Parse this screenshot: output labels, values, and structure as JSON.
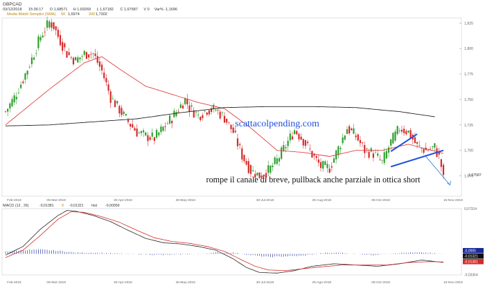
{
  "header": {
    "symbol": "GBPCAD",
    "values": [
      "03/12/2018",
      "15:36:17",
      "O 1,68571",
      "H 1,69269",
      "L 1,67182",
      "C 1,67587",
      "V 0",
      "Var% -1,1696"
    ],
    "ma_label": "Media Mobili Semplici (SMA)",
    "ma_periods": [
      [
        "50",
        "1,6974"
      ],
      [
        "200",
        "1,7302"
      ]
    ]
  },
  "macd_header": {
    "label": "MACD",
    "params": "(12 , 26)",
    "value": "-0,01381",
    "sig_label": "9",
    "sig_value": "-0,01321",
    "hist_label": "hist",
    "hist_value": "-0,00059"
  },
  "annotations": {
    "link": "scattacolpending.com",
    "comment": "rompe il canale di breve, pullback anche parziale in ottica short"
  },
  "colors": {
    "up": "#2e9e2e",
    "down": "#d42a2a",
    "sma50": "#e04040",
    "sma200": "#222222",
    "channel": "#1f4fe0",
    "link": "#1f4fe0",
    "axis": "#9aa0a6",
    "macd_line": "#222222",
    "signal_line": "#d42a2a",
    "hist": "#2a3a9a"
  },
  "chart_data": [
    {
      "type": "candlestick",
      "x_ticks": [
        "Feb-2018",
        "05-Mar-2018",
        "30-Apr-2018",
        "30-May-2018",
        "30-Jul-2018",
        "30-Aug-2018",
        "05-Oct-2018",
        "15-Nov-2018"
      ],
      "y_ticks": [
        "1,825",
        "1,800",
        "1,775",
        "1,750",
        "1,725",
        "1,700",
        "1,675"
      ],
      "ylim": [
        1.655,
        1.83
      ],
      "last_price": "1,67587",
      "trend": [
        [
          0,
          1.738
        ],
        [
          4,
          1.752
        ],
        [
          8,
          1.77
        ],
        [
          12,
          1.79
        ],
        [
          16,
          1.812
        ],
        [
          20,
          1.826
        ],
        [
          22,
          1.822
        ],
        [
          24,
          1.812
        ],
        [
          28,
          1.795
        ],
        [
          32,
          1.788
        ],
        [
          36,
          1.795
        ],
        [
          40,
          1.795
        ],
        [
          44,
          1.778
        ],
        [
          48,
          1.752
        ],
        [
          52,
          1.74
        ],
        [
          56,
          1.728
        ],
        [
          60,
          1.718
        ],
        [
          64,
          1.714
        ],
        [
          68,
          1.712
        ],
        [
          72,
          1.722
        ],
        [
          76,
          1.732
        ],
        [
          80,
          1.744
        ],
        [
          82,
          1.75
        ],
        [
          84,
          1.742
        ],
        [
          88,
          1.734
        ],
        [
          92,
          1.74
        ],
        [
          96,
          1.74
        ],
        [
          100,
          1.732
        ],
        [
          104,
          1.718
        ],
        [
          108,
          1.695
        ],
        [
          112,
          1.68
        ],
        [
          116,
          1.675
        ],
        [
          120,
          1.68
        ],
        [
          124,
          1.69
        ],
        [
          128,
          1.705
        ],
        [
          132,
          1.72
        ],
        [
          136,
          1.71
        ],
        [
          140,
          1.696
        ],
        [
          144,
          1.684
        ],
        [
          148,
          1.683
        ],
        [
          152,
          1.702
        ],
        [
          156,
          1.722
        ],
        [
          160,
          1.714
        ],
        [
          164,
          1.7
        ],
        [
          168,
          1.697
        ],
        [
          172,
          1.688
        ],
        [
          176,
          1.708
        ],
        [
          180,
          1.722
        ],
        [
          184,
          1.718
        ],
        [
          188,
          1.704
        ],
        [
          192,
          1.7
        ],
        [
          196,
          1.703
        ],
        [
          198,
          1.693
        ],
        [
          200,
          1.676
        ]
      ],
      "candle_count": 201,
      "series": [
        {
          "name": "50",
          "values": [
            [
              0,
              1.725
            ],
            [
              20,
              1.76
            ],
            [
              36,
              1.786
            ],
            [
              44,
              1.792
            ],
            [
              52,
              1.78
            ],
            [
              64,
              1.763
            ],
            [
              76,
              1.755
            ],
            [
              88,
              1.747
            ],
            [
              100,
              1.741
            ],
            [
              112,
              1.722
            ],
            [
              124,
              1.7
            ],
            [
              136,
              1.698
            ],
            [
              148,
              1.694
            ],
            [
              160,
              1.7
            ],
            [
              172,
              1.7
            ],
            [
              184,
              1.706
            ],
            [
              200,
              1.697
            ]
          ]
        },
        {
          "name": "200",
          "values": [
            [
              0,
              1.724
            ],
            [
              20,
              1.725
            ],
            [
              40,
              1.728
            ],
            [
              60,
              1.731
            ],
            [
              80,
              1.737
            ],
            [
              100,
              1.742
            ],
            [
              120,
              1.743
            ],
            [
              140,
              1.743
            ],
            [
              160,
              1.742
            ],
            [
              180,
              1.738
            ],
            [
              196,
              1.733
            ]
          ]
        }
      ],
      "channel": {
        "upper": [
          [
            176,
            1.699
          ],
          [
            188,
            1.716
          ]
        ],
        "lower": [
          [
            176,
            1.684
          ],
          [
            200,
            1.7
          ]
        ]
      },
      "arrow": [
        [
          192,
          1.694
        ],
        [
          203,
          1.666
        ]
      ]
    },
    {
      "type": "line",
      "label": "MACD",
      "y_ticks": [
        "0,07314",
        "-0,0005",
        "-0,01321",
        "-0,01381",
        "-0,03364"
      ],
      "ylim": [
        -0.034,
        0.073
      ],
      "series": [
        {
          "name": "MACD",
          "values": [
            [
              0,
              -0.002
            ],
            [
              8,
              0.012
            ],
            [
              16,
              0.04
            ],
            [
              24,
              0.062
            ],
            [
              28,
              0.07
            ],
            [
              32,
              0.069
            ],
            [
              40,
              0.062
            ],
            [
              48,
              0.052
            ],
            [
              56,
              0.038
            ],
            [
              64,
              0.025
            ],
            [
              72,
              0.018
            ],
            [
              80,
              0.016
            ],
            [
              88,
              0.012
            ],
            [
              96,
              0.006
            ],
            [
              104,
              -0.008
            ],
            [
              110,
              -0.022
            ],
            [
              116,
              -0.03
            ],
            [
              124,
              -0.031
            ],
            [
              132,
              -0.027
            ],
            [
              140,
              -0.02
            ],
            [
              150,
              -0.016
            ],
            [
              160,
              -0.018
            ],
            [
              170,
              -0.02
            ],
            [
              180,
              -0.016
            ],
            [
              190,
              -0.01
            ],
            [
              200,
              -0.0138
            ]
          ]
        },
        {
          "name": "9",
          "values": [
            [
              0,
              -0.006
            ],
            [
              8,
              0.006
            ],
            [
              16,
              0.03
            ],
            [
              24,
              0.056
            ],
            [
              30,
              0.068
            ],
            [
              36,
              0.067
            ],
            [
              44,
              0.06
            ],
            [
              52,
              0.051
            ],
            [
              60,
              0.038
            ],
            [
              68,
              0.026
            ],
            [
              76,
              0.02
            ],
            [
              84,
              0.017
            ],
            [
              92,
              0.012
            ],
            [
              100,
              0.004
            ],
            [
              108,
              -0.01
            ],
            [
              114,
              -0.02
            ],
            [
              120,
              -0.026
            ],
            [
              128,
              -0.027
            ],
            [
              136,
              -0.024
            ],
            [
              144,
              -0.021
            ],
            [
              154,
              -0.018
            ],
            [
              164,
              -0.018
            ],
            [
              174,
              -0.018
            ],
            [
              184,
              -0.014
            ],
            [
              194,
              -0.0125
            ],
            [
              200,
              -0.0132
            ]
          ]
        },
        {
          "name": "hist",
          "values": [
            [
              0,
              0.004
            ],
            [
              8,
              0.006
            ],
            [
              16,
              0.007
            ],
            [
              24,
              0.005
            ],
            [
              32,
              0.002
            ],
            [
              40,
              0.002
            ],
            [
              48,
              0.001
            ],
            [
              56,
              0.0
            ],
            [
              64,
              -0.001
            ],
            [
              72,
              -0.002
            ],
            [
              80,
              -0.001
            ],
            [
              88,
              0.0
            ],
            [
              96,
              0.002
            ],
            [
              104,
              0.002
            ],
            [
              112,
              -0.002
            ],
            [
              120,
              -0.005
            ],
            [
              128,
              -0.004
            ],
            [
              136,
              -0.003
            ],
            [
              144,
              0.001
            ],
            [
              152,
              0.002
            ],
            [
              160,
              0.0
            ],
            [
              168,
              -0.002
            ],
            [
              176,
              0.001
            ],
            [
              184,
              0.002
            ],
            [
              192,
              0.002
            ],
            [
              200,
              -0.0006
            ]
          ]
        }
      ],
      "x_ticks": [
        "Feb-2018",
        "05-Mar-2018",
        "30-Apr-2018",
        "30-May-2018",
        "30-Jul-2018",
        "30-Ago-2018",
        "05-Oct-2018",
        "15-Nov-2018"
      ]
    }
  ]
}
